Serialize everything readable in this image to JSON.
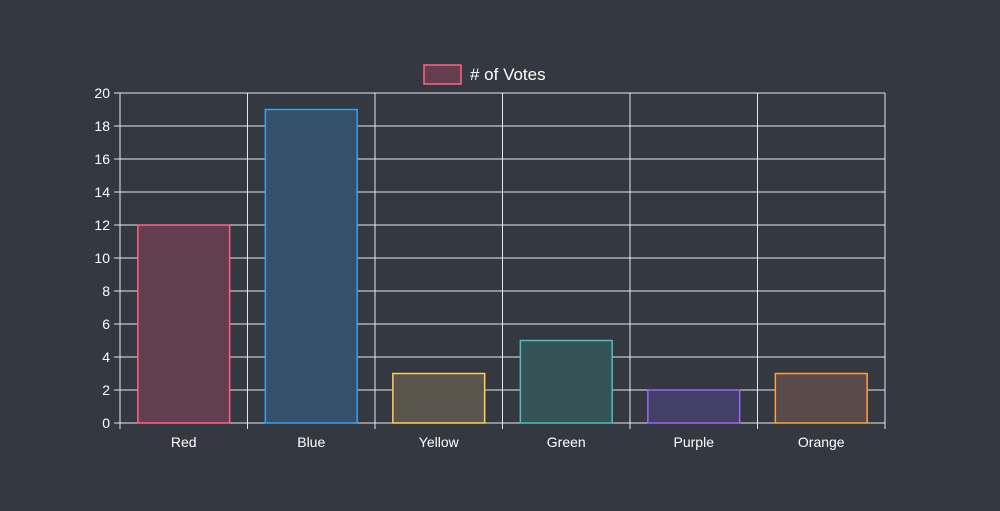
{
  "chart_data": {
    "type": "bar",
    "categories": [
      "Red",
      "Blue",
      "Yellow",
      "Green",
      "Purple",
      "Orange"
    ],
    "series": [
      {
        "name": "# of Votes",
        "values": [
          12,
          19,
          3,
          5,
          2,
          3
        ]
      }
    ],
    "ylim": [
      0,
      20
    ],
    "ytick_step": 2,
    "grid": true,
    "legend": "top",
    "bar_fill_colors": [
      "#623e4f",
      "#35506a",
      "#5a554d",
      "#355256",
      "#433f66",
      "#5a4a4a"
    ],
    "bar_border_colors": [
      "#ff6384",
      "#36a2eb",
      "#ffce56",
      "#4bc0c0",
      "#9966ff",
      "#ff9f40"
    ],
    "legend_fill": "#623e4f",
    "legend_border": "#ff6384",
    "grid_color": "#e8e8e8",
    "text_color": "#ffffff",
    "background": "#343840"
  }
}
